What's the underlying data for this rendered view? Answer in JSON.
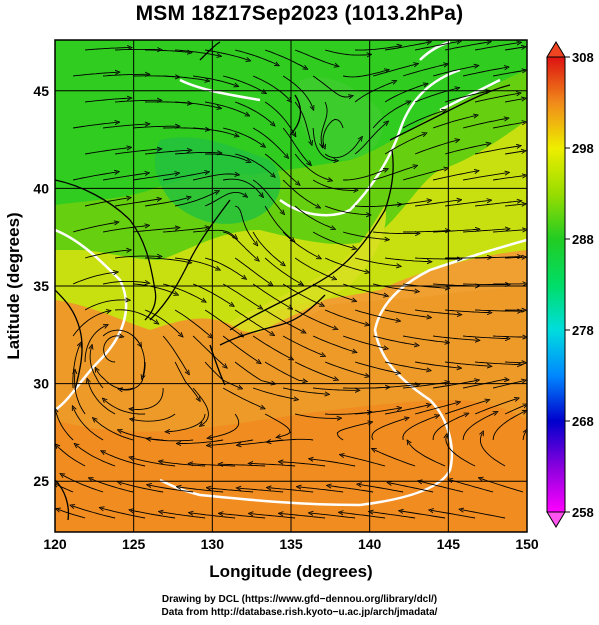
{
  "title": "MSM 18Z17Sep2023 (1013.2hPa)",
  "map": {
    "xlabel": "Longitude (degrees)",
    "ylabel": "Latitude  (degrees)",
    "lon_ticks": [
      120,
      125,
      130,
      135,
      140,
      145,
      150
    ],
    "lat_ticks": [
      25,
      30,
      35,
      40,
      45
    ],
    "lon_range": [
      120,
      150
    ],
    "lat_range": [
      22.4,
      47.6
    ],
    "grid": true,
    "field": "temperature (K) with streamlines",
    "colors": {
      "cool": "#22dd22",
      "mid": "#e8e800",
      "warm": "#f09020",
      "land_line": "#000000",
      "contour": "#ffffff"
    }
  },
  "colorbar": {
    "ticks": [
      258,
      268,
      278,
      288,
      298,
      308
    ],
    "range": [
      258,
      308
    ],
    "stops": [
      {
        "value": 258,
        "color": "#ff00ff"
      },
      {
        "value": 263,
        "color": "#8800dd"
      },
      {
        "value": 268,
        "color": "#0000cc"
      },
      {
        "value": 273,
        "color": "#0088ff"
      },
      {
        "value": 278,
        "color": "#00dddd"
      },
      {
        "value": 283,
        "color": "#00dd66"
      },
      {
        "value": 288,
        "color": "#22cc22"
      },
      {
        "value": 293,
        "color": "#99dd00"
      },
      {
        "value": 298,
        "color": "#eeee00"
      },
      {
        "value": 303,
        "color": "#f08a1a"
      },
      {
        "value": 308,
        "color": "#dd1111"
      }
    ]
  },
  "credits": {
    "line1": "Drawing by DCL (https://www.gfd−dennou.org/library/dcl/)",
    "line2": "Data from http://database.rish.kyoto−u.ac.jp/arch/jmadata/"
  }
}
